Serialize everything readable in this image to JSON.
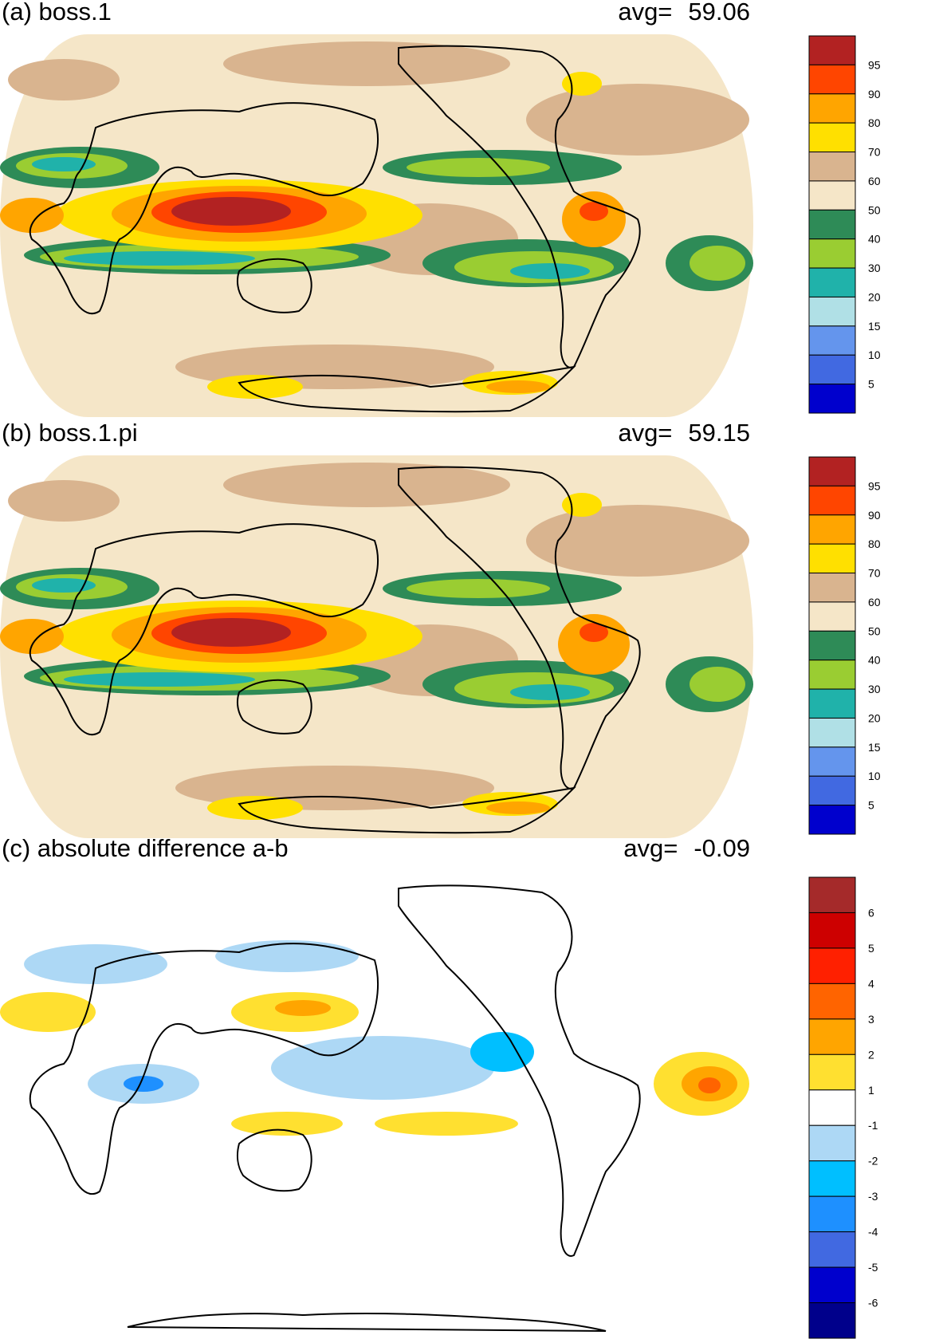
{
  "colors": {
    "ocean_fill": "#f5e6c8",
    "land_outline": "#000000",
    "background": "#ffffff"
  },
  "panels": [
    {
      "id": "a",
      "title": "(a) boss.1",
      "avg_label": "avg=",
      "avg_value": "59.06",
      "colorbar": {
        "labels": [
          "95",
          "90",
          "80",
          "70",
          "60",
          "50",
          "40",
          "30",
          "20",
          "15",
          "10",
          "5"
        ],
        "colors": [
          "#b22222",
          "#ff4500",
          "#ffa500",
          "#ffe000",
          "#d9b48f",
          "#f5e6c8",
          "#2e8b57",
          "#9acd32",
          "#20b2aa",
          "#b0e0e6",
          "#6495ed",
          "#4169e1",
          "#0000cd"
        ]
      }
    },
    {
      "id": "b",
      "title": "(b) boss.1.pi",
      "avg_label": "avg=",
      "avg_value": "59.15",
      "colorbar": {
        "labels": [
          "95",
          "90",
          "80",
          "70",
          "60",
          "50",
          "40",
          "30",
          "20",
          "15",
          "10",
          "5"
        ],
        "colors": [
          "#b22222",
          "#ff4500",
          "#ffa500",
          "#ffe000",
          "#d9b48f",
          "#f5e6c8",
          "#2e8b57",
          "#9acd32",
          "#20b2aa",
          "#b0e0e6",
          "#6495ed",
          "#4169e1",
          "#0000cd"
        ]
      }
    },
    {
      "id": "c",
      "title": "(c) absolute difference a-b",
      "avg_label": "avg=",
      "avg_value": "-0.09",
      "colorbar": {
        "labels": [
          "6",
          "5",
          "4",
          "3",
          "2",
          "1",
          "-1",
          "-2",
          "-3",
          "-4",
          "-5",
          "-6"
        ],
        "colors": [
          "#a52a2a",
          "#cd0000",
          "#ff2000",
          "#ff6400",
          "#ffa500",
          "#ffe030",
          "#ffffff",
          "#add8f5",
          "#00bfff",
          "#1e90ff",
          "#4169e1",
          "#0000cd",
          "#00008b"
        ]
      }
    }
  ]
}
